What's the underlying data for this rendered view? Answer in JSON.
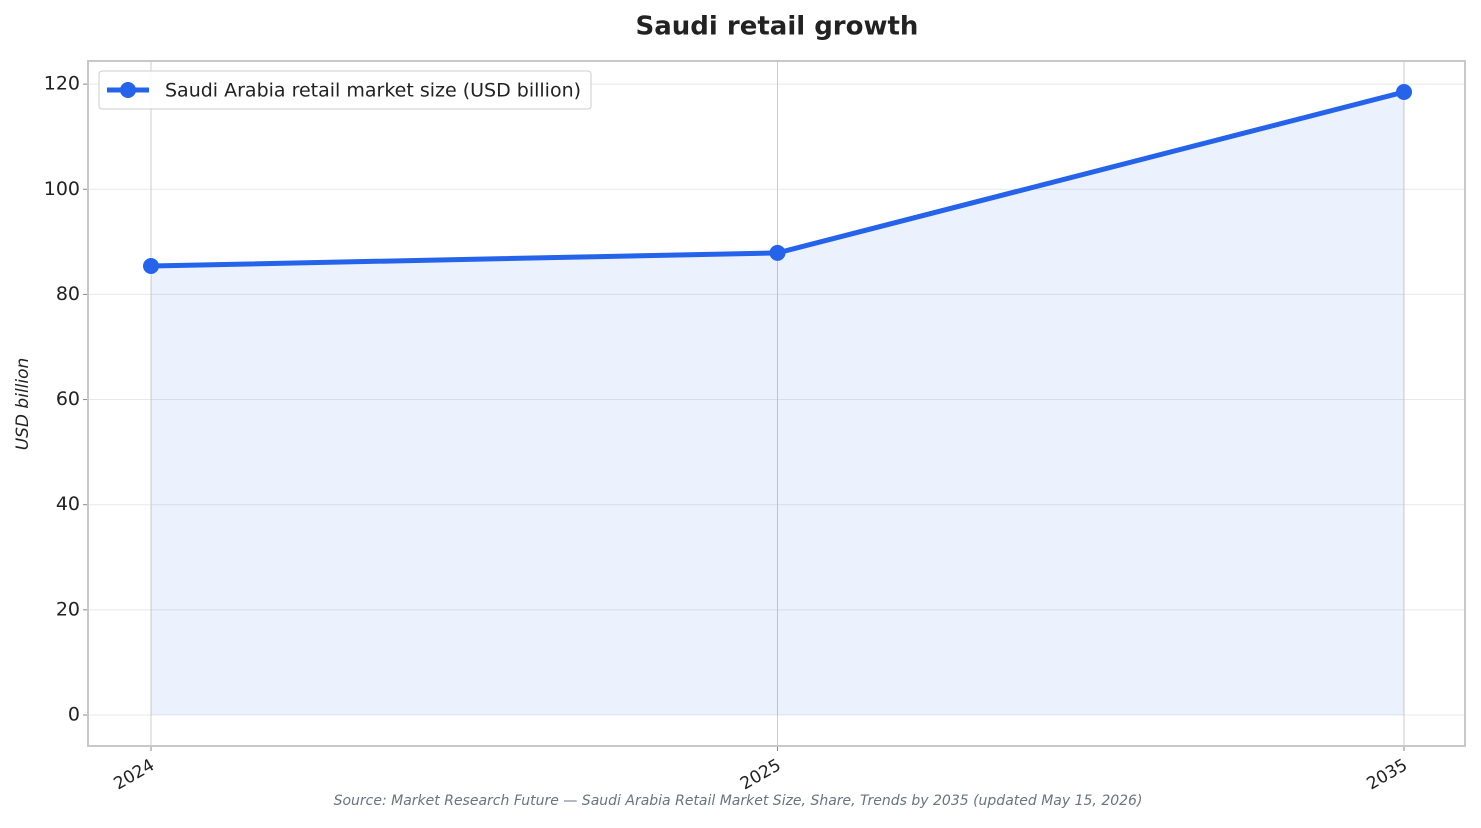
{
  "chart_data": {
    "type": "line",
    "title": "Saudi retail growth",
    "y_label": "USD billion",
    "source": "Source: Market Research Future — Saudi Arabia Retail Market Size, Share, Trends by 2035 (updated May 15, 2026)",
    "categories": [
      "2024",
      "2025",
      "2035"
    ],
    "series": [
      {
        "name": "Saudi Arabia retail market size (USD billion)",
        "color": "#2563eb",
        "values": [
          85.4,
          87.9,
          118.5
        ]
      }
    ],
    "ylim": [
      -5.9,
      124.4
    ],
    "yticks": [
      0,
      20,
      40,
      60,
      80,
      100,
      120
    ],
    "grid": true,
    "area_fill": true,
    "legend": "upper left"
  }
}
